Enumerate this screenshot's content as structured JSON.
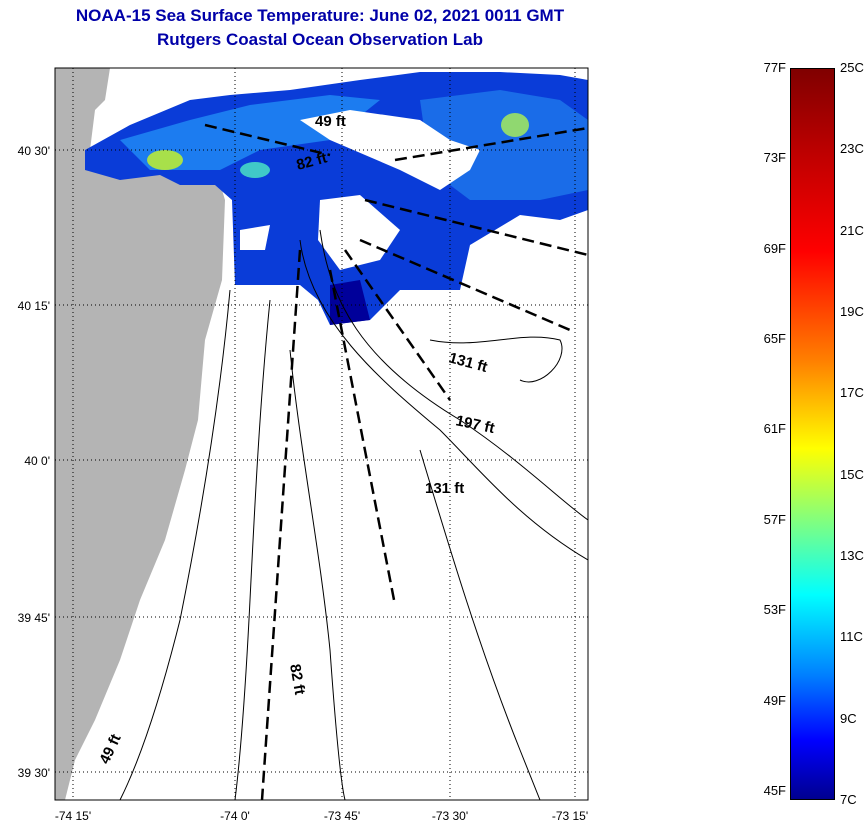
{
  "title": "NOAA-15 Sea Surface Temperature:  June 02, 2021 0011 GMT",
  "subtitle": "Rutgers Coastal Ocean Observation Lab",
  "x_ticks": [
    "-74 15'",
    "-74 0'",
    "-73 45'",
    "-73 30'",
    "-73 15'"
  ],
  "y_ticks": [
    "40 30'",
    "40 15'",
    "40 0'",
    "39 45'",
    "39 30'"
  ],
  "depth_labels": [
    "49 ft",
    "82 ft",
    "131 ft",
    "197 ft",
    "131 ft",
    "82 ft",
    "49 ft"
  ],
  "colorbar": {
    "fahrenheit": [
      "77F",
      "73F",
      "69F",
      "65F",
      "61F",
      "57F",
      "53F",
      "49F",
      "45F"
    ],
    "celsius": [
      "25C",
      "23C",
      "21C",
      "19C",
      "17C",
      "15C",
      "13C",
      "11C",
      "9C",
      "7C"
    ],
    "range_c": [
      7,
      25
    ]
  },
  "colors": {
    "title": "#0000a8",
    "land": "#b4b4b4"
  }
}
